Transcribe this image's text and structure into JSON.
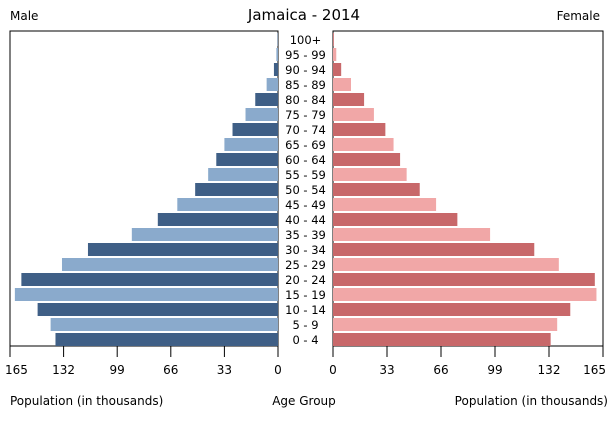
{
  "chart_data": {
    "type": "bar",
    "title": "Jamaica - 2014",
    "left_label": "Male",
    "right_label": "Female",
    "xlabel_left": "Population (in thousands)",
    "xlabel_center": "Age Group",
    "xlabel_right": "Population (in thousands)",
    "xlim": [
      0,
      165
    ],
    "x_ticks": [
      0,
      33,
      66,
      99,
      132,
      165
    ],
    "categories": [
      "100+",
      "95 - 99",
      "90 - 94",
      "85 - 89",
      "80 - 84",
      "75 - 79",
      "70 - 74",
      "65 - 69",
      "60 - 64",
      "55 - 59",
      "50 - 54",
      "45 - 49",
      "40 - 44",
      "35 - 39",
      "30 - 34",
      "25 - 29",
      "20 - 24",
      "15 - 19",
      "10 - 14",
      "5 - 9",
      "0 - 4"
    ],
    "series": [
      {
        "name": "Male",
        "values": [
          0.3,
          1,
          2.5,
          7,
          14,
          20,
          28,
          33,
          38,
          43,
          51,
          62,
          74,
          90,
          117,
          133,
          158,
          162,
          148,
          140,
          137
        ]
      },
      {
        "name": "Female",
        "values": [
          0.5,
          2,
          5,
          11,
          19,
          25,
          32,
          37,
          41,
          45,
          53,
          63,
          76,
          96,
          123,
          138,
          160,
          161,
          145,
          137,
          133
        ]
      }
    ],
    "colors": {
      "male_dark": "#3f5f86",
      "male_light": "#8aaacc",
      "female_dark": "#c8686a",
      "female_light": "#f1a7a7"
    }
  }
}
